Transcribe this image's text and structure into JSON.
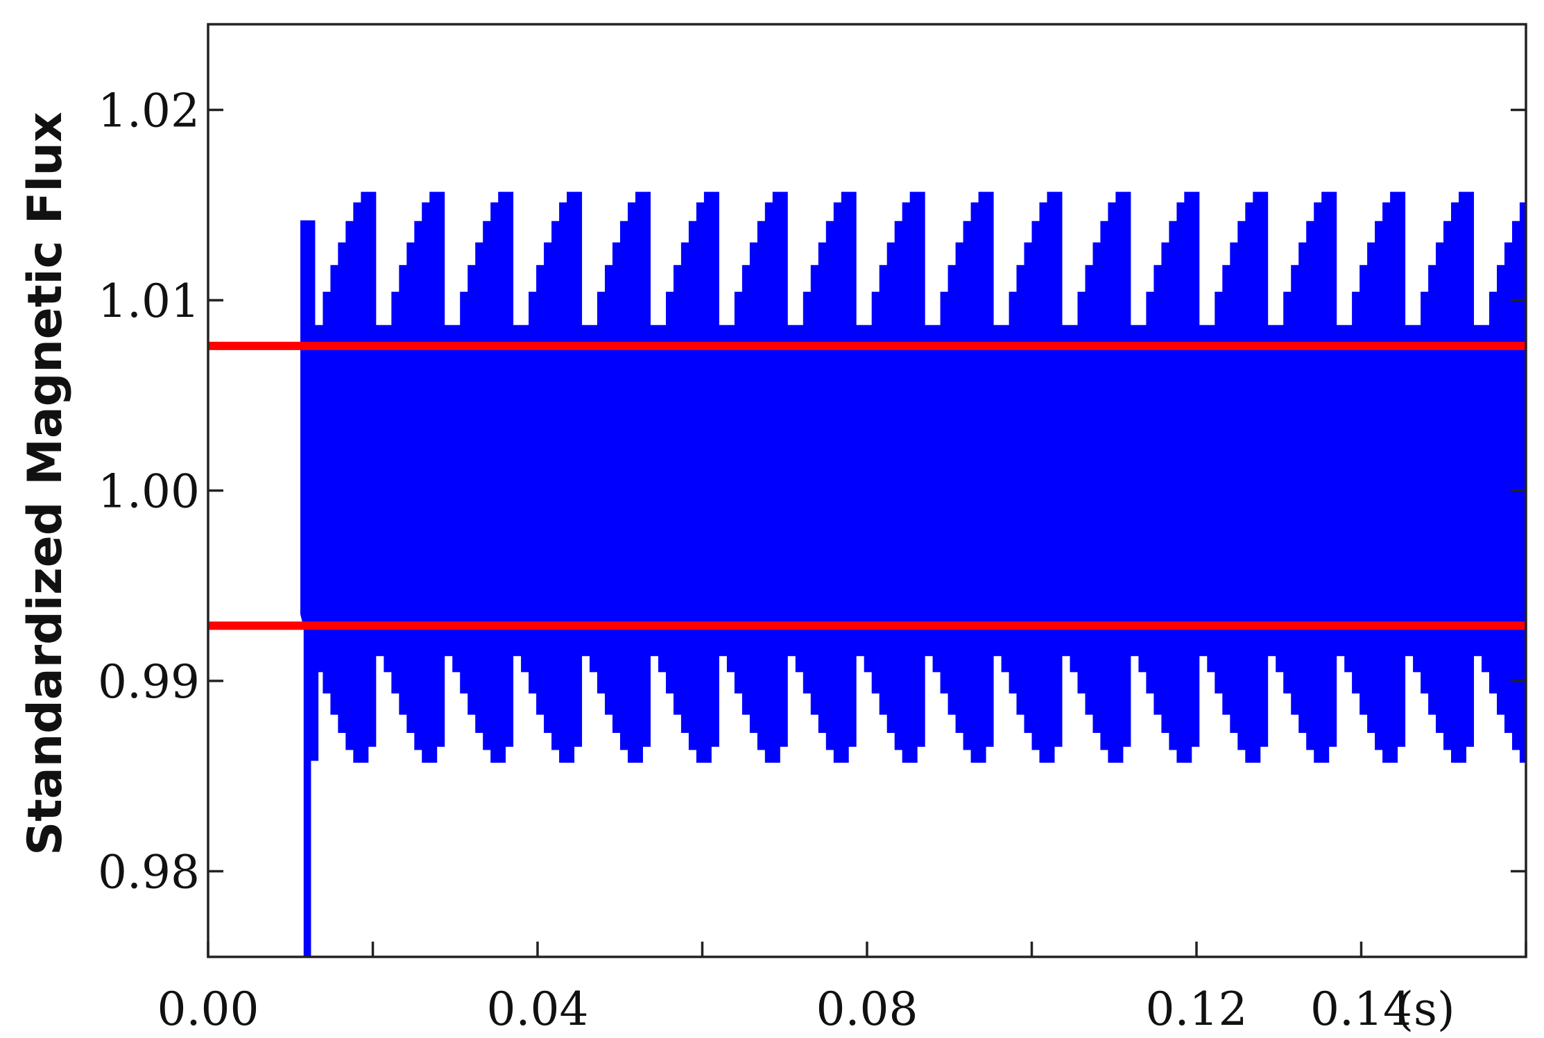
{
  "chart_data": {
    "type": "area",
    "title": "",
    "xlabel": "(s)",
    "ylabel": "Standardized Magnetic Flux",
    "xlim": [
      0.0,
      0.16
    ],
    "ylim": [
      0.9755,
      1.0245
    ],
    "x_ticks": [
      0.0,
      0.02,
      0.04,
      0.06,
      0.08,
      0.1,
      0.12,
      0.14,
      0.16
    ],
    "x_tick_labels": [
      "0.00",
      "0.04",
      "0.08",
      "0.12",
      "0.14"
    ],
    "x_tick_label_values": [
      0.0,
      0.04,
      0.08,
      0.12,
      0.14
    ],
    "y_ticks": [
      0.98,
      0.99,
      1.0,
      1.01,
      1.02
    ],
    "y_tick_labels": [
      "0.98",
      "0.99",
      "1.00",
      "1.01",
      "1.02"
    ],
    "grid": false,
    "series": [
      {
        "color": "#0000ff",
        "start_time": 0.0112,
        "envelope_period": 0.00833,
        "upper_envelope": {
          "min": 1.0087,
          "max": 1.0157
        },
        "lower_envelope": {
          "min": 0.9857,
          "max": 0.9913
        },
        "startup_transient_min": 0.9755
      },
      {
        "color": "#ff0000",
        "constant_value": 1.0076
      },
      {
        "color": "#ff0000",
        "constant_value": 0.9929
      }
    ]
  }
}
